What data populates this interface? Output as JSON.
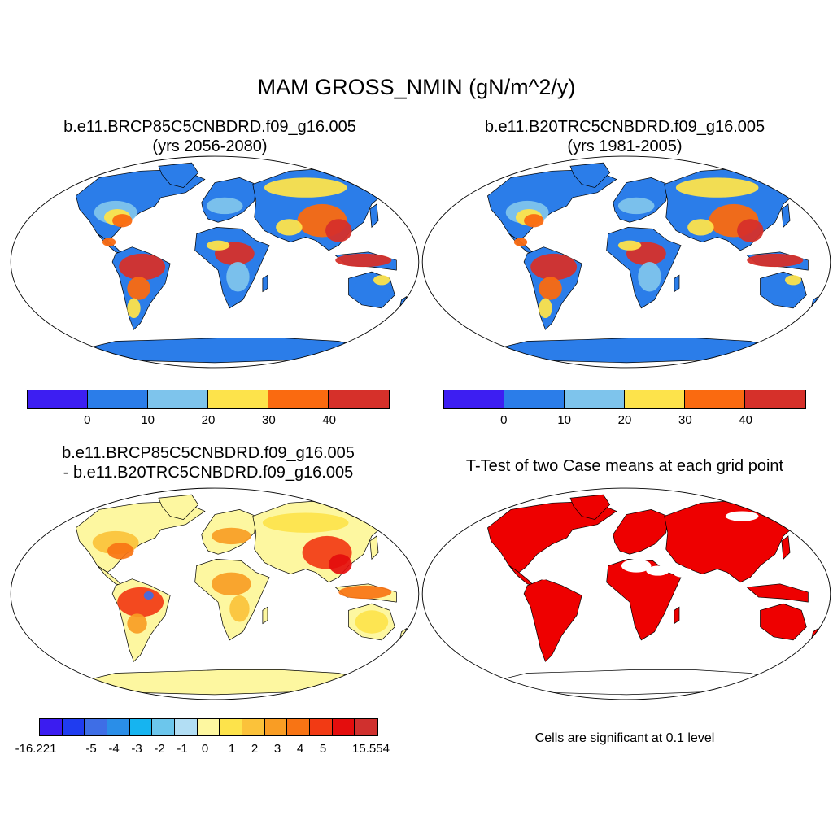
{
  "main_title": "MAM GROSS_NMIN (gN/m^2/y)",
  "panels": {
    "p1": {
      "title_line1": "b.e11.BRCP85C5CNBDRD.f09_g16.005",
      "title_line2": "(yrs 2056-2080)"
    },
    "p2": {
      "title_line1": "b.e11.B20TRC5CNBDRD.f09_g16.005",
      "title_line2": "(yrs 1981-2005)"
    },
    "p3": {
      "title_line1": "b.e11.BRCP85C5CNBDRD.f09_g16.005",
      "title_line2": "- b.e11.B20TRC5CNBDRD.f09_g16.005"
    },
    "p4": {
      "title_line1": "T-Test of two Case means at each grid point",
      "note": "Cells are significant at 0.1 level"
    }
  },
  "colorbar_top": {
    "colors": [
      "#3d1ef2",
      "#2b7de9",
      "#7ec4ec",
      "#fde34b",
      "#fa6a10",
      "#d6302a"
    ],
    "tick_labels": [
      "0",
      "10",
      "20",
      "30",
      "40"
    ]
  },
  "colorbar_diff": {
    "colors": [
      "#3b1cf0",
      "#1f3cf0",
      "#3e6ee6",
      "#2a8ee8",
      "#16b4f0",
      "#6cc6ec",
      "#b2def4",
      "#fdf7a0",
      "#fde34b",
      "#fbc23a",
      "#f99d24",
      "#f87414",
      "#f23a14",
      "#e40d0d",
      "#d0302e"
    ],
    "tick_labels": [
      "-16.221",
      "-5",
      "-4",
      "-3",
      "-2",
      "-1",
      "0",
      "1",
      "2",
      "3",
      "4",
      "5",
      "15.554"
    ]
  },
  "map_colors": {
    "ocean": "#ffffff",
    "cold_land": "#2b7de9",
    "mid_land": "#7ec4ec",
    "warm_land": "#fde34b",
    "orange": "#fa6a10",
    "red": "#d6302a",
    "diff_base": "#fdf7a0",
    "significance": "#ee0000"
  }
}
